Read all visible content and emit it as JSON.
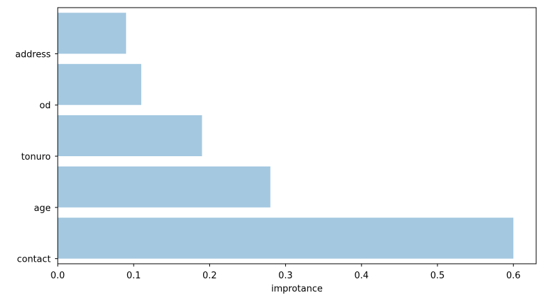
{
  "chart_data": {
    "type": "bar",
    "orientation": "horizontal",
    "categories": [
      "contact",
      "age",
      "tonuro",
      "od",
      "address"
    ],
    "values": [
      0.6,
      0.28,
      0.19,
      0.11,
      0.09
    ],
    "title": "",
    "xlabel": "improtance",
    "ylabel": "",
    "xlim": [
      0,
      0.63
    ],
    "xticks": [
      0.0,
      0.1,
      0.2,
      0.3,
      0.4,
      0.5,
      0.6
    ],
    "xtick_labels": [
      "0.0",
      "0.1",
      "0.2",
      "0.3",
      "0.4",
      "0.5",
      "0.6"
    ],
    "grid": false,
    "bar_color": "#a4c8e0",
    "axis_color": "#000000"
  }
}
